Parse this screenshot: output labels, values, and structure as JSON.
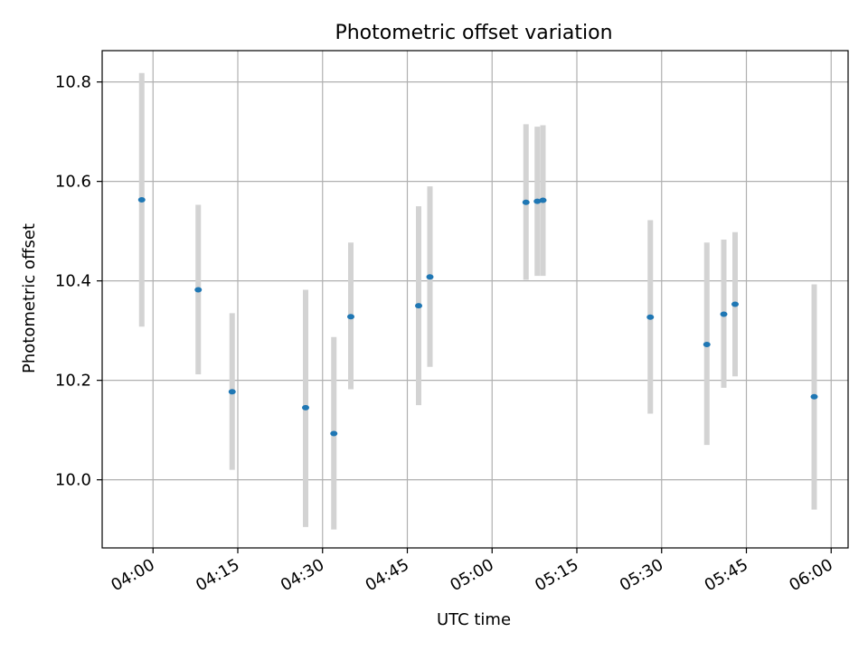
{
  "chart_data": {
    "type": "scatter",
    "title": "Photometric offset variation",
    "xlabel": "UTC time",
    "ylabel": "Photometric offset",
    "x_unit": "UTC time (HH:MM)",
    "xlim": [
      "03:51",
      "06:03"
    ],
    "ylim": [
      9.863,
      10.863
    ],
    "grid": true,
    "x_ticks": [
      "04:00",
      "04:15",
      "04:30",
      "04:45",
      "05:00",
      "05:15",
      "05:30",
      "05:45",
      "06:00"
    ],
    "y_ticks": [
      "10.0",
      "10.2",
      "10.4",
      "10.6",
      "10.8"
    ],
    "error_bar_color": "#d3d3d3",
    "marker_color": "#1f77b4",
    "series": [
      {
        "points": [
          {
            "x": "03:58",
            "y": 10.563,
            "low": 10.308,
            "high": 10.818
          },
          {
            "x": "04:08",
            "y": 10.382,
            "low": 10.212,
            "high": 10.553
          },
          {
            "x": "04:14",
            "y": 10.177,
            "low": 10.02,
            "high": 10.335
          },
          {
            "x": "04:27",
            "y": 10.145,
            "low": 9.905,
            "high": 10.382
          },
          {
            "x": "04:32",
            "y": 10.093,
            "low": 9.9,
            "high": 10.287
          },
          {
            "x": "04:35",
            "y": 10.328,
            "low": 10.182,
            "high": 10.477
          },
          {
            "x": "04:47",
            "y": 10.35,
            "low": 10.15,
            "high": 10.55
          },
          {
            "x": "04:49",
            "y": 10.408,
            "low": 10.227,
            "high": 10.59
          },
          {
            "x": "05:06",
            "y": 10.558,
            "low": 10.402,
            "high": 10.715
          },
          {
            "x": "05:08",
            "y": 10.56,
            "low": 10.41,
            "high": 10.71
          },
          {
            "x": "05:09",
            "y": 10.562,
            "low": 10.41,
            "high": 10.713
          },
          {
            "x": "05:28",
            "y": 10.327,
            "low": 10.133,
            "high": 10.522
          },
          {
            "x": "05:38",
            "y": 10.272,
            "low": 10.07,
            "high": 10.477
          },
          {
            "x": "05:41",
            "y": 10.333,
            "low": 10.185,
            "high": 10.483
          },
          {
            "x": "05:43",
            "y": 10.353,
            "low": 10.208,
            "high": 10.498
          },
          {
            "x": "05:57",
            "y": 10.167,
            "low": 9.94,
            "high": 10.393
          }
        ]
      }
    ]
  }
}
